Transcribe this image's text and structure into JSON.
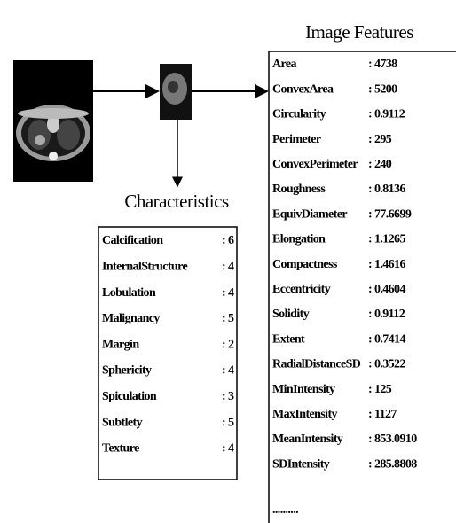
{
  "image_features": {
    "title": "Image Features",
    "rows": [
      {
        "name": "Area",
        "value": ": 4738"
      },
      {
        "name": "ConvexArea",
        "value": ": 5200"
      },
      {
        "name": "Circularity",
        "value": ": 0.9112"
      },
      {
        "name": "Perimeter",
        "value": ": 295"
      },
      {
        "name": "ConvexPerimeter",
        "value": ": 240"
      },
      {
        "name": "Roughness",
        "value": ": 0.8136"
      },
      {
        "name": "EquivDiameter",
        "value": ": 77.6699"
      },
      {
        "name": "Elongation",
        "value": ": 1.1265"
      },
      {
        "name": "Compactness",
        "value": ": 1.4616"
      },
      {
        "name": "Eccentricity",
        "value": ": 0.4604"
      },
      {
        "name": "Solidity",
        "value": ": 0.9112"
      },
      {
        "name": "Extent",
        "value": ": 0.7414"
      },
      {
        "name": "RadialDistanceSD",
        "value": ": 0.3522"
      },
      {
        "name": "MinIntensity",
        "value": ": 125"
      },
      {
        "name": "MaxIntensity",
        "value": ": 1127"
      },
      {
        "name": "MeanIntensity",
        "value": ": 853.0910"
      },
      {
        "name": "SDIntensity",
        "value": ": 285.8808"
      }
    ],
    "more": ".........."
  },
  "characteristics": {
    "title": "Characteristics",
    "rows": [
      {
        "name": "Calcification",
        "value": ": 6"
      },
      {
        "name": "InternalStructure",
        "value": ": 4"
      },
      {
        "name": "Lobulation",
        "value": ": 4"
      },
      {
        "name": "Malignancy",
        "value": ": 5"
      },
      {
        "name": "Margin",
        "value": ": 2"
      },
      {
        "name": "Sphericity",
        "value": ": 4"
      },
      {
        "name": "Spiculation",
        "value": ": 3"
      },
      {
        "name": "Subtlety",
        "value": ": 5"
      },
      {
        "name": "Texture",
        "value": ": 4"
      }
    ]
  }
}
